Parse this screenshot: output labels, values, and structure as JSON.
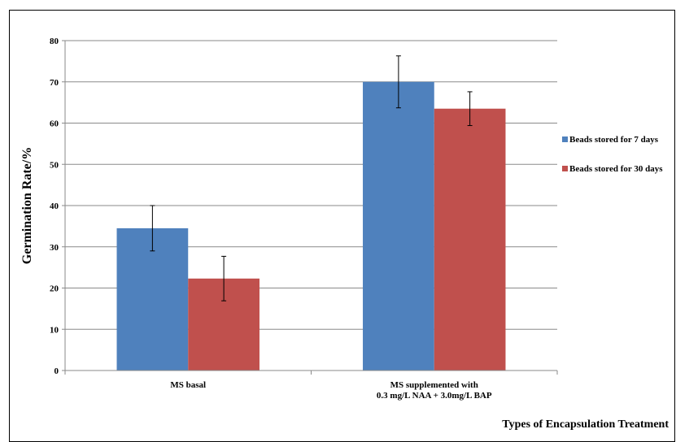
{
  "chart_data": {
    "type": "bar",
    "title": "",
    "xlabel": "Types of Encapsulation Treatment",
    "ylabel": "Germination Rate/%",
    "ylim": [
      0,
      80
    ],
    "yticks": [
      0,
      10,
      20,
      30,
      40,
      50,
      60,
      70,
      80
    ],
    "grid": true,
    "legend_position": "right",
    "categories": [
      [
        "MS basal"
      ],
      [
        "MS supplemented with",
        "0.3 mg/L NAA + 3.0mg/L BAP"
      ]
    ],
    "series": [
      {
        "name": "Beads stored for 7 days",
        "color": "#4F81BD",
        "values": [
          34.5,
          70.0
        ],
        "errors": [
          5.5,
          6.3
        ]
      },
      {
        "name": "Beads stored for 30 days",
        "color": "#C0504D",
        "values": [
          22.3,
          63.5
        ],
        "errors": [
          5.4,
          4.1
        ]
      }
    ]
  }
}
